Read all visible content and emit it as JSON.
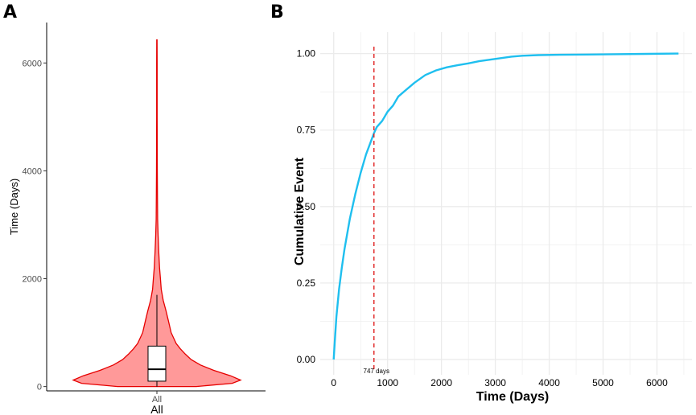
{
  "panels": {
    "a_label": "A",
    "b_label": "B"
  },
  "chart_data": [
    {
      "type": "violin",
      "panel": "A",
      "ylabel": "Time (Days)",
      "xlabel": "All",
      "categories": [
        "All"
      ],
      "yticks": [
        0,
        2000,
        4000,
        6000
      ],
      "ylim": [
        -80,
        6750
      ],
      "colors": {
        "fill": "#ff9999",
        "stroke": "#e60000"
      },
      "density": [
        [
          0,
          0.47
        ],
        [
          60,
          0.9
        ],
        [
          120,
          1.0
        ],
        [
          200,
          0.88
        ],
        [
          300,
          0.68
        ],
        [
          400,
          0.52
        ],
        [
          500,
          0.41
        ],
        [
          600,
          0.34
        ],
        [
          700,
          0.28
        ],
        [
          800,
          0.23
        ],
        [
          1000,
          0.17
        ],
        [
          1200,
          0.14
        ],
        [
          1400,
          0.11
        ],
        [
          1600,
          0.075
        ],
        [
          1800,
          0.052
        ],
        [
          2000,
          0.042
        ],
        [
          2200,
          0.032
        ],
        [
          2500,
          0.022
        ],
        [
          2800,
          0.014
        ],
        [
          3100,
          0.009
        ],
        [
          3500,
          0.007
        ],
        [
          4000,
          0.005
        ],
        [
          4500,
          0.004
        ],
        [
          5000,
          0.003
        ],
        [
          5500,
          0.003
        ],
        [
          6000,
          0.003
        ],
        [
          6430,
          0.002
        ]
      ],
      "box": {
        "q1": 100,
        "median": 320,
        "q3": 750,
        "whisker_low": 0,
        "whisker_high": 1700
      }
    },
    {
      "type": "line",
      "panel": "B",
      "xlabel": "Time (Days)",
      "ylabel": "Cumulative Event",
      "xticks": [
        0,
        1000,
        2000,
        3000,
        4000,
        5000,
        6000
      ],
      "yticks": [
        0.0,
        0.25,
        0.5,
        0.75,
        1.0
      ],
      "ytick_labels": [
        "0.00",
        "0.25",
        "0.50",
        "0.75",
        "1.00"
      ],
      "xlim": [
        -250,
        6650
      ],
      "ylim": [
        -0.05,
        1.07
      ],
      "grid": true,
      "colors": {
        "line": "#1fbfef",
        "vline": "#e02020",
        "grid": "#ebebeb"
      },
      "vline": {
        "x": 747,
        "label": "747 days"
      },
      "series": [
        {
          "name": "Cumulative Event",
          "x": [
            0,
            20,
            50,
            100,
            150,
            200,
            300,
            400,
            500,
            600,
            747,
            800,
            900,
            1000,
            1100,
            1200,
            1300,
            1500,
            1700,
            1900,
            2100,
            2300,
            2500,
            2700,
            2900,
            3100,
            3300,
            3500,
            3800,
            4200,
            4700,
            5200,
            5800,
            6400
          ],
          "y": [
            0.0,
            0.06,
            0.14,
            0.23,
            0.3,
            0.36,
            0.46,
            0.54,
            0.61,
            0.67,
            0.74,
            0.76,
            0.78,
            0.81,
            0.83,
            0.86,
            0.875,
            0.905,
            0.93,
            0.945,
            0.955,
            0.962,
            0.968,
            0.975,
            0.98,
            0.985,
            0.99,
            0.993,
            0.995,
            0.996,
            0.997,
            0.998,
            0.999,
            1.0
          ]
        }
      ]
    }
  ]
}
